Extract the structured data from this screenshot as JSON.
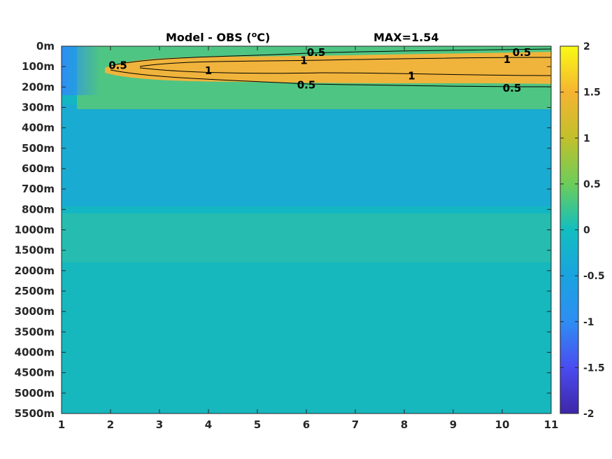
{
  "chart_data": {
    "type": "heatmap",
    "title": "Model - OBS (",
    "title_unit_sup": "o",
    "title_unit_end": "C)",
    "max_label": "MAX=1.54",
    "x_ticks": [
      "1",
      "2",
      "3",
      "4",
      "5",
      "6",
      "7",
      "8",
      "9",
      "10",
      "11"
    ],
    "xlim": [
      1,
      11
    ],
    "y_ticks": [
      "0m",
      "100m",
      "200m",
      "300m",
      "400m",
      "500m",
      "600m",
      "700m",
      "800m",
      "1000m",
      "1500m",
      "2000m",
      "2500m",
      "3000m",
      "3500m",
      "4000m",
      "4500m",
      "5000m",
      "5500m"
    ],
    "colorbar": {
      "ticks": [
        "2",
        "1.5",
        "1",
        "0.5",
        "0",
        "-0.5",
        "-1",
        "-1.5",
        "-2"
      ],
      "range": [
        -2,
        2
      ]
    },
    "contour_levels": [
      0.5,
      1
    ],
    "contour_labels": [
      {
        "text": "0.5",
        "x": 2.15,
        "y": 0.95
      },
      {
        "text": "0.5",
        "x": 6.2,
        "y": 0.3
      },
      {
        "text": "0.5",
        "x": 10.4,
        "y": 0.3
      },
      {
        "text": "1",
        "x": 4.0,
        "y": 1.2
      },
      {
        "text": "1",
        "x": 5.95,
        "y": 0.7
      },
      {
        "text": "1",
        "x": 8.15,
        "y": 1.45
      },
      {
        "text": "1",
        "x": 10.1,
        "y": 0.65
      },
      {
        "text": "0.5",
        "x": 6.0,
        "y": 1.9
      },
      {
        "text": "0.5",
        "x": 10.2,
        "y": 2.05
      }
    ],
    "value_bands": [
      {
        "y_from": 0,
        "y_to": 0.4,
        "value": 0.4
      },
      {
        "y_from": 0.4,
        "y_to": 1.8,
        "value": 1.2
      },
      {
        "y_from": 1.8,
        "y_to": 3,
        "value": 0.25
      },
      {
        "y_from": 3,
        "y_to": 8,
        "value": -0.25
      },
      {
        "y_from": 8,
        "y_to": 9,
        "value": 0.0
      },
      {
        "y_from": 9,
        "y_to": 11,
        "value": 0.15
      },
      {
        "y_from": 11,
        "y_to": 18,
        "value": 0.05
      }
    ],
    "colors": {
      "min": "#3e26a8",
      "neg": "#2e8ef3",
      "zero": "#12bec0",
      "pos": "#6ccd5a",
      "high": "#f5b431",
      "max": "#f9fb15"
    }
  }
}
